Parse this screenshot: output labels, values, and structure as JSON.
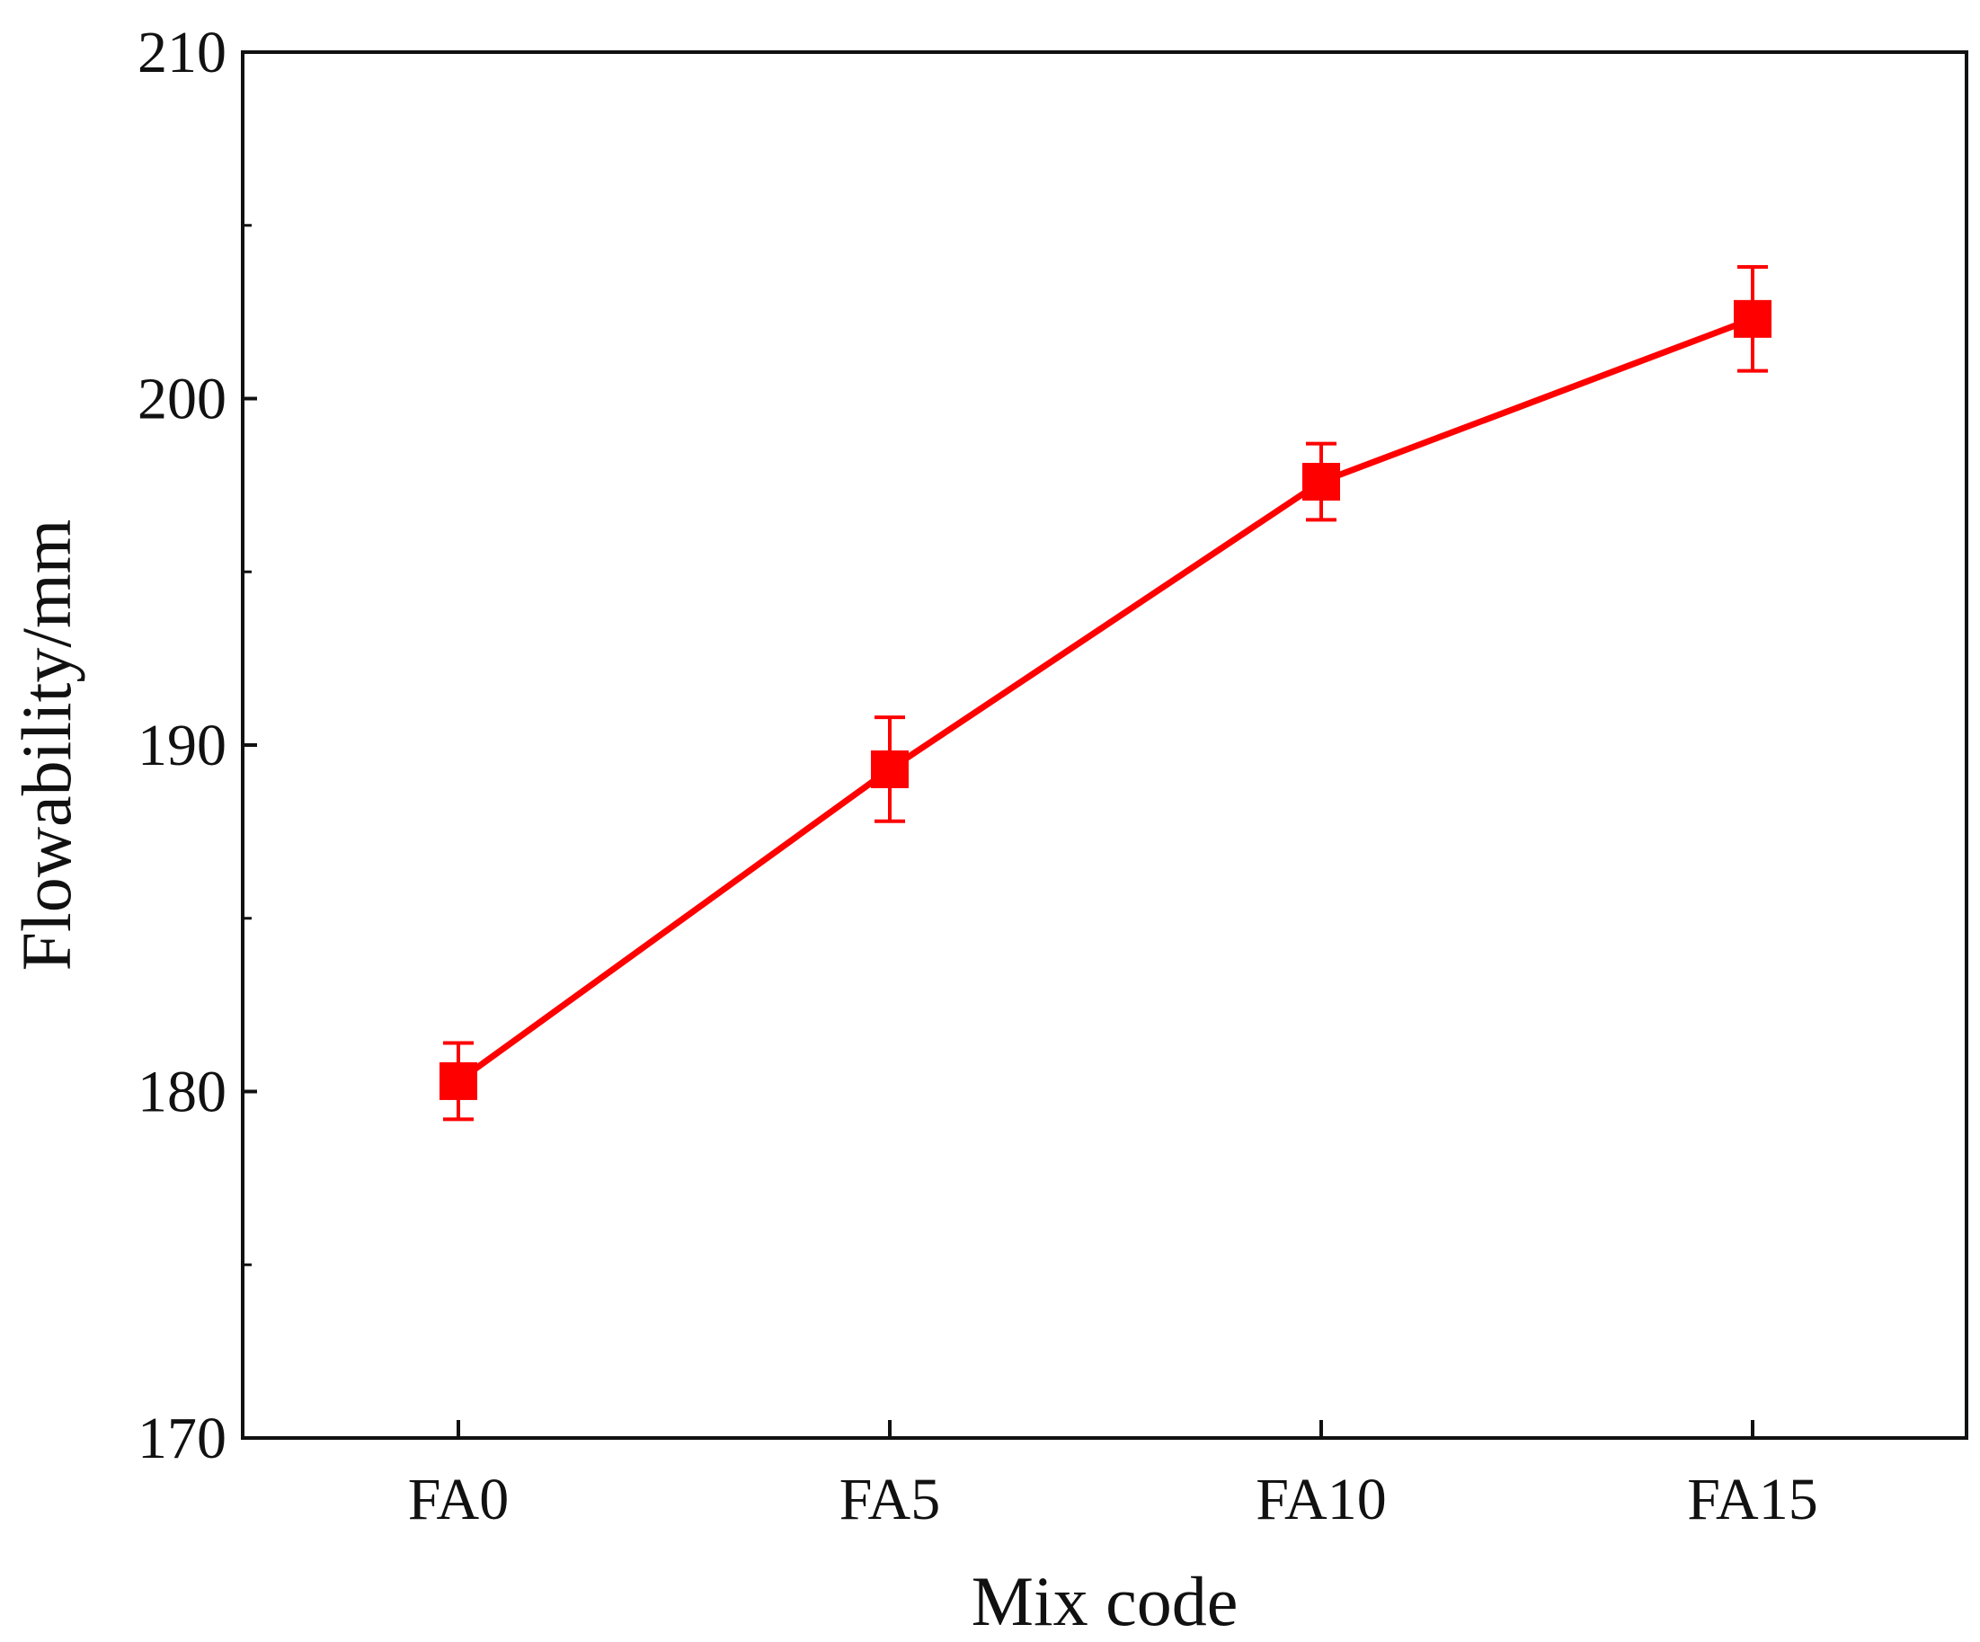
{
  "chart_data": {
    "type": "line",
    "categories": [
      "FA0",
      "FA5",
      "FA10",
      "FA15"
    ],
    "series": [
      {
        "values": [
          180.3,
          189.3,
          197.6,
          202.3
        ],
        "errors": [
          1.1,
          1.5,
          1.1,
          1.5
        ],
        "color": "#ff0000",
        "marker": "square"
      }
    ],
    "xlabel": "Mix code",
    "ylabel": "Flowability/mm",
    "ylim": [
      170,
      210
    ],
    "yticks": [
      170,
      180,
      190,
      200,
      210
    ],
    "yticks_minor": [
      175,
      185,
      195,
      205
    ],
    "grid": false,
    "legend": "none"
  }
}
